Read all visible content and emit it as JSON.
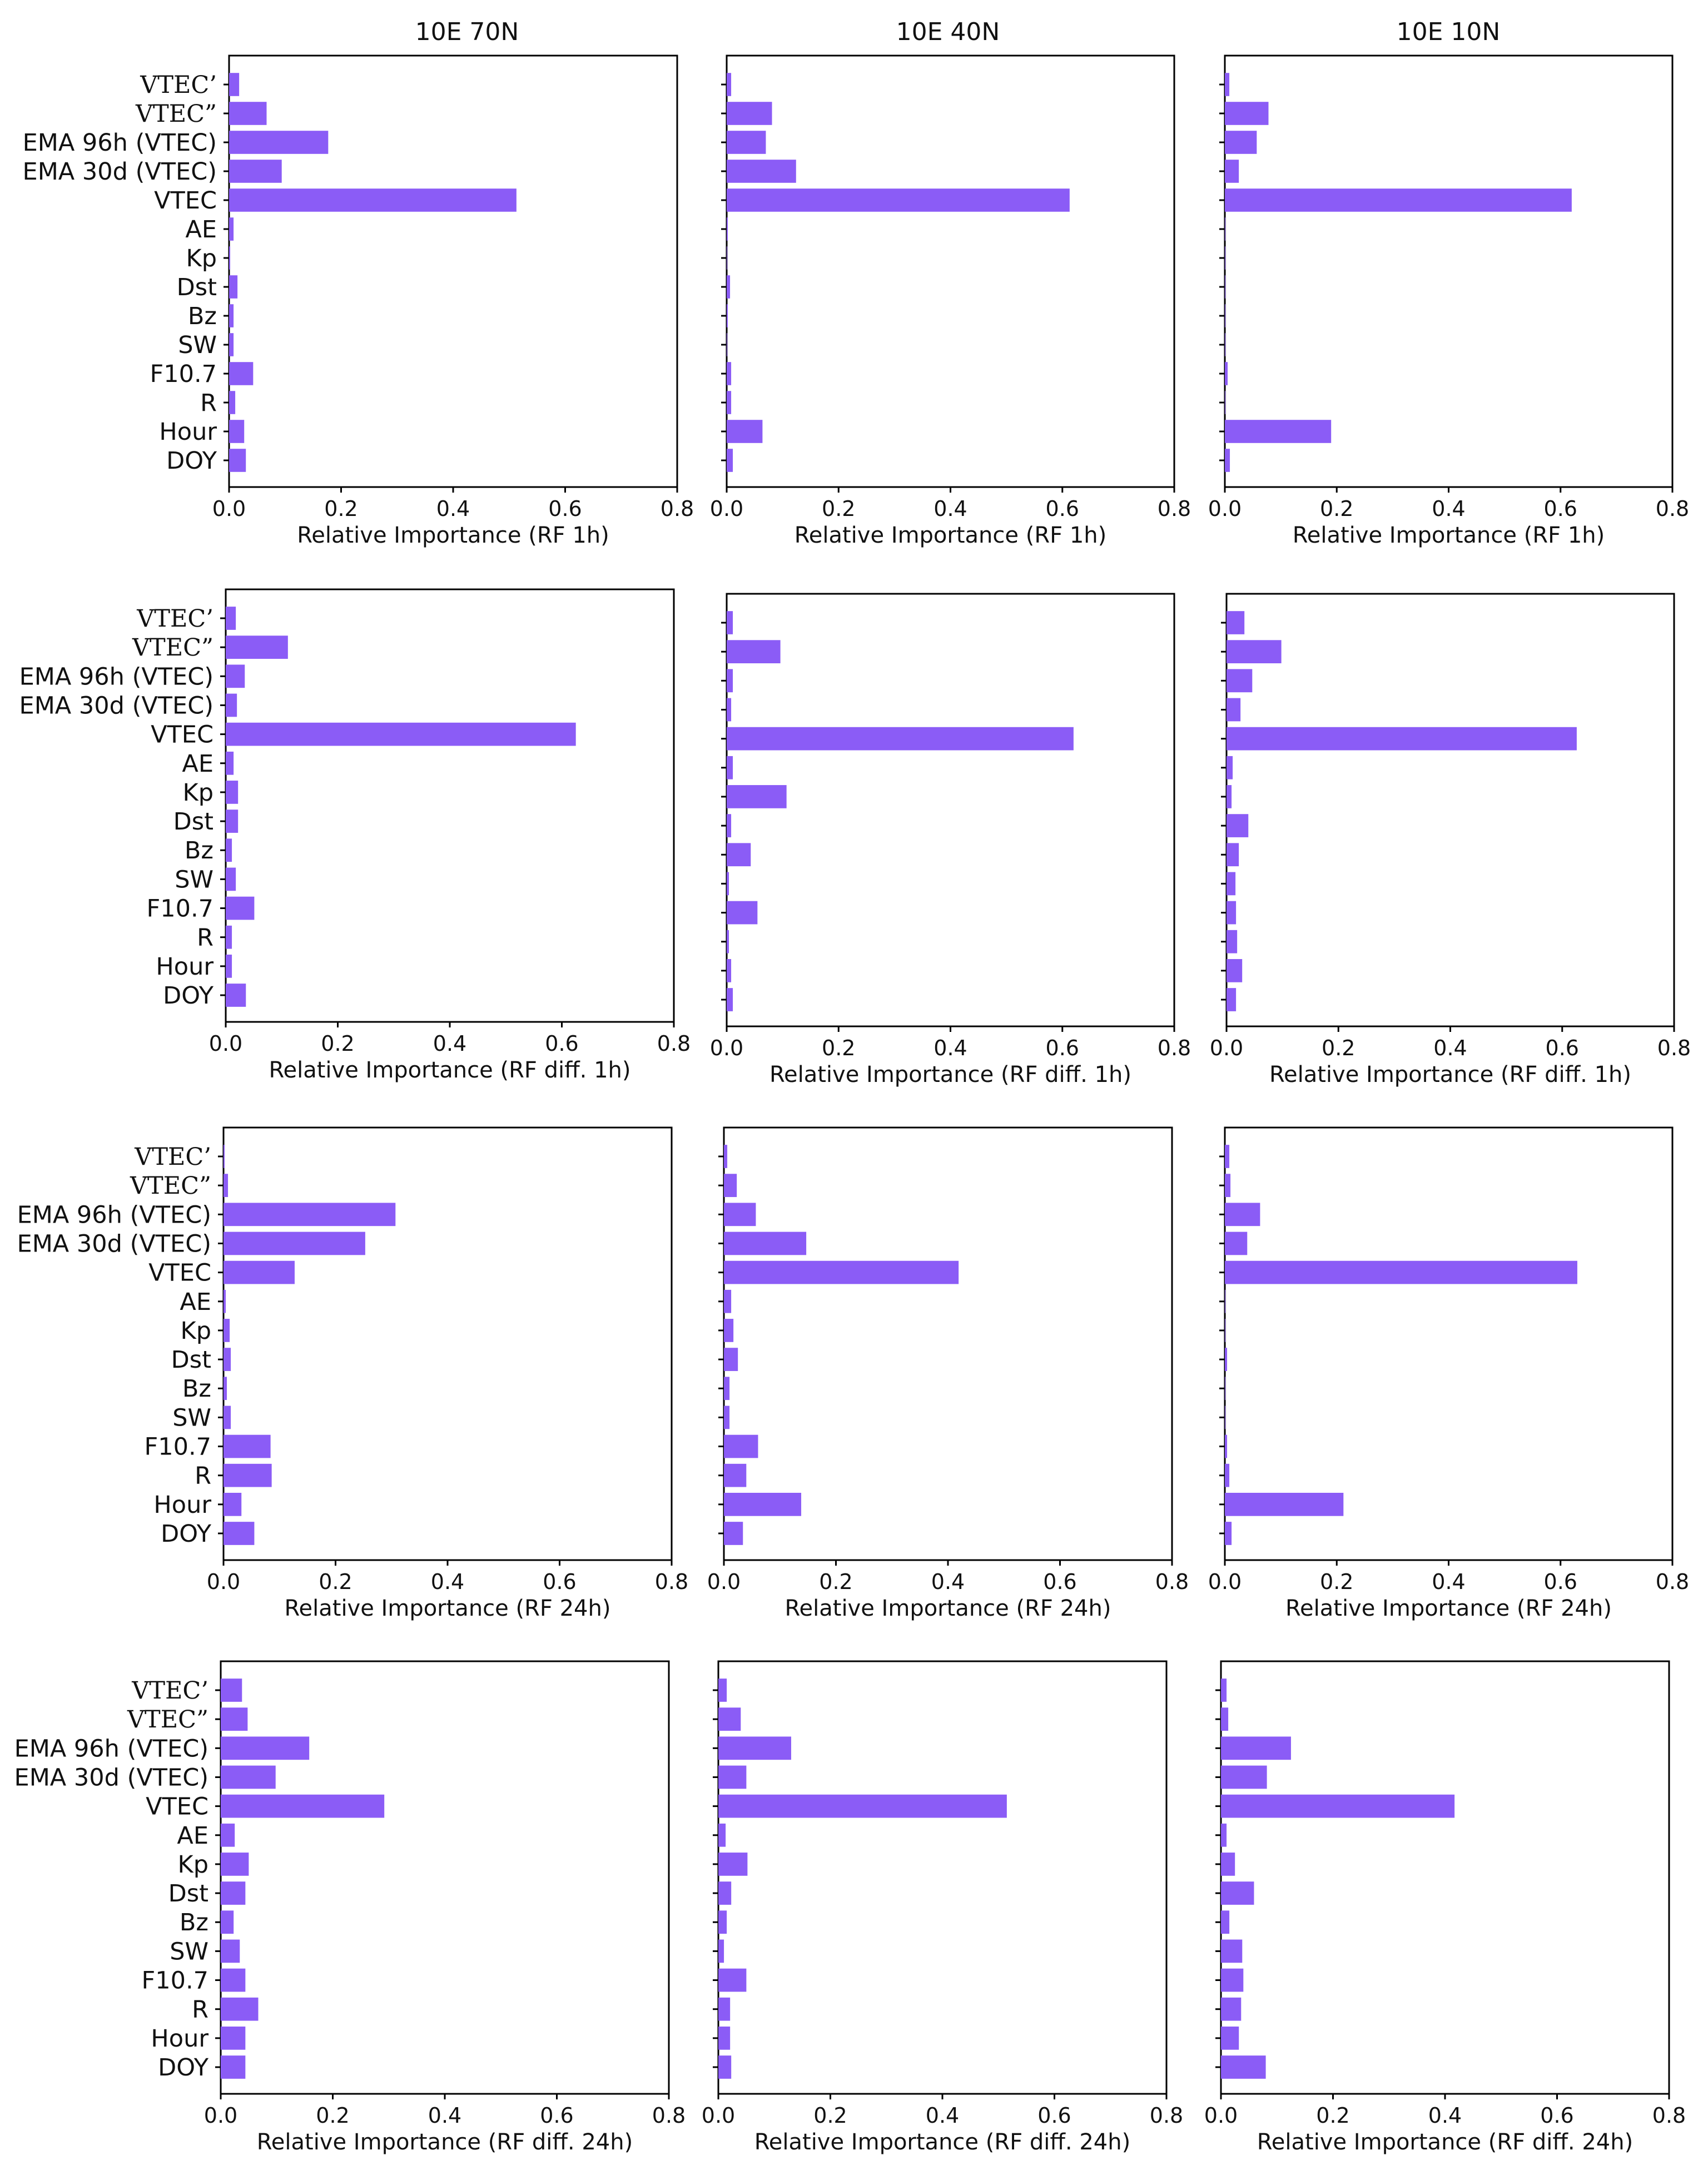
{
  "column_titles": [
    "10E 70N",
    "10E 40N",
    "10E 10N"
  ],
  "colors": {
    "bar": "#8b5cf6",
    "axis": "#000000",
    "text": "#111111"
  },
  "chart_data": [
    {
      "type": "bar",
      "orientation": "horizontal",
      "column_title": "10E 70N",
      "xlabel": "Relative Importance (RF 1h)",
      "xlim": [
        0,
        0.8
      ],
      "xticks": [
        "0.0",
        "0.2",
        "0.4",
        "0.6",
        "0.8"
      ],
      "categories": [
        "VTEC’",
        "VTEC”",
        "EMA 96h (VTEC)",
        "EMA 30d (VTEC)",
        "VTEC",
        "AE",
        "Kp",
        "Dst",
        "Bz",
        "SW",
        "F10.7",
        "R",
        "Hour",
        "DOY"
      ],
      "values": [
        0.018,
        0.067,
        0.177,
        0.094,
        0.513,
        0.008,
        0.002,
        0.015,
        0.008,
        0.008,
        0.043,
        0.011,
        0.027,
        0.03
      ]
    },
    {
      "type": "bar",
      "orientation": "horizontal",
      "column_title": "10E 40N",
      "xlabel": "Relative Importance (RF 1h)",
      "xlim": [
        0,
        0.8
      ],
      "xticks": [
        "0.0",
        "0.2",
        "0.4",
        "0.6",
        "0.8"
      ],
      "categories": [
        "VTEC’",
        "VTEC”",
        "EMA 96h (VTEC)",
        "EMA 30d (VTEC)",
        "VTEC",
        "AE",
        "Kp",
        "Dst",
        "Bz",
        "SW",
        "F10.7",
        "R",
        "Hour",
        "DOY"
      ],
      "values": [
        0.008,
        0.081,
        0.07,
        0.124,
        0.613,
        0.002,
        0.001,
        0.006,
        0.002,
        0.001,
        0.008,
        0.008,
        0.064,
        0.011
      ]
    },
    {
      "type": "bar",
      "orientation": "horizontal",
      "column_title": "10E 10N",
      "xlabel": "Relative Importance (RF 1h)",
      "xlim": [
        0,
        0.8
      ],
      "xticks": [
        "0.0",
        "0.2",
        "0.4",
        "0.6",
        "0.8"
      ],
      "categories": [
        "VTEC’",
        "VTEC”",
        "EMA 96h (VTEC)",
        "EMA 30d (VTEC)",
        "VTEC",
        "AE",
        "Kp",
        "Dst",
        "Bz",
        "SW",
        "F10.7",
        "R",
        "Hour",
        "DOY"
      ],
      "values": [
        0.008,
        0.078,
        0.057,
        0.025,
        0.62,
        0.001,
        0.001,
        0.001,
        0.001,
        0.001,
        0.005,
        0.001,
        0.19,
        0.009
      ]
    },
    {
      "type": "bar",
      "orientation": "horizontal",
      "column_title": "10E 70N",
      "xlabel": "Relative Importance (RF diff. 1h)",
      "xlim": [
        0,
        0.8
      ],
      "xticks": [
        "0.0",
        "0.2",
        "0.4",
        "0.6",
        "0.8"
      ],
      "categories": [
        "VTEC’",
        "VTEC”",
        "EMA 96h (VTEC)",
        "EMA 30d (VTEC)",
        "VTEC",
        "AE",
        "Kp",
        "Dst",
        "Bz",
        "SW",
        "F10.7",
        "R",
        "Hour",
        "DOY"
      ],
      "values": [
        0.018,
        0.111,
        0.034,
        0.02,
        0.625,
        0.014,
        0.022,
        0.022,
        0.011,
        0.018,
        0.051,
        0.011,
        0.011,
        0.036
      ]
    },
    {
      "type": "bar",
      "orientation": "horizontal",
      "column_title": "10E 40N",
      "xlabel": "Relative Importance (RF diff. 1h)",
      "xlim": [
        0,
        0.8
      ],
      "xticks": [
        "0.0",
        "0.2",
        "0.4",
        "0.6",
        "0.8"
      ],
      "categories": [
        "VTEC’",
        "VTEC”",
        "EMA 96h (VTEC)",
        "EMA 30d (VTEC)",
        "VTEC",
        "AE",
        "Kp",
        "Dst",
        "Bz",
        "SW",
        "F10.7",
        "R",
        "Hour",
        "DOY"
      ],
      "values": [
        0.011,
        0.096,
        0.011,
        0.008,
        0.62,
        0.011,
        0.107,
        0.008,
        0.043,
        0.004,
        0.055,
        0.004,
        0.008,
        0.011
      ]
    },
    {
      "type": "bar",
      "orientation": "horizontal",
      "column_title": "10E 10N",
      "xlabel": "Relative Importance (RF diff. 1h)",
      "xlim": [
        0,
        0.8
      ],
      "xticks": [
        "0.0",
        "0.2",
        "0.4",
        "0.6",
        "0.8"
      ],
      "categories": [
        "VTEC’",
        "VTEC”",
        "EMA 96h (VTEC)",
        "EMA 30d (VTEC)",
        "VTEC",
        "AE",
        "Kp",
        "Dst",
        "Bz",
        "SW",
        "F10.7",
        "R",
        "Hour",
        "DOY"
      ],
      "values": [
        0.032,
        0.098,
        0.046,
        0.025,
        0.626,
        0.011,
        0.009,
        0.039,
        0.022,
        0.016,
        0.017,
        0.019,
        0.028,
        0.017
      ]
    },
    {
      "type": "bar",
      "orientation": "horizontal",
      "column_title": "10E 70N",
      "xlabel": "Relative Importance (RF 24h)",
      "xlim": [
        0,
        0.8
      ],
      "xticks": [
        "0.0",
        "0.2",
        "0.4",
        "0.6",
        "0.8"
      ],
      "categories": [
        "VTEC’",
        "VTEC”",
        "EMA 96h (VTEC)",
        "EMA 30d (VTEC)",
        "VTEC",
        "AE",
        "Kp",
        "Dst",
        "Bz",
        "SW",
        "F10.7",
        "R",
        "Hour",
        "DOY"
      ],
      "values": [
        0.002,
        0.008,
        0.307,
        0.253,
        0.127,
        0.004,
        0.011,
        0.013,
        0.006,
        0.013,
        0.084,
        0.086,
        0.032,
        0.055
      ]
    },
    {
      "type": "bar",
      "orientation": "horizontal",
      "column_title": "10E 40N",
      "xlabel": "Relative Importance (RF 24h)",
      "xlim": [
        0,
        0.8
      ],
      "xticks": [
        "0.0",
        "0.2",
        "0.4",
        "0.6",
        "0.8"
      ],
      "categories": [
        "VTEC’",
        "VTEC”",
        "EMA 96h (VTEC)",
        "EMA 30d (VTEC)",
        "VTEC",
        "AE",
        "Kp",
        "Dst",
        "Bz",
        "SW",
        "F10.7",
        "R",
        "Hour",
        "DOY"
      ],
      "values": [
        0.006,
        0.023,
        0.057,
        0.147,
        0.419,
        0.013,
        0.017,
        0.025,
        0.01,
        0.01,
        0.061,
        0.04,
        0.138,
        0.034
      ]
    },
    {
      "type": "bar",
      "orientation": "horizontal",
      "column_title": "10E 10N",
      "xlabel": "Relative Importance (RF 24h)",
      "xlim": [
        0,
        0.8
      ],
      "xticks": [
        "0.0",
        "0.2",
        "0.4",
        "0.6",
        "0.8"
      ],
      "categories": [
        "VTEC’",
        "VTEC”",
        "EMA 96h (VTEC)",
        "EMA 30d (VTEC)",
        "VTEC",
        "AE",
        "Kp",
        "Dst",
        "Bz",
        "SW",
        "F10.7",
        "R",
        "Hour",
        "DOY"
      ],
      "values": [
        0.008,
        0.01,
        0.063,
        0.04,
        0.63,
        0.001,
        0.001,
        0.004,
        0.001,
        0.001,
        0.004,
        0.008,
        0.212,
        0.012
      ]
    },
    {
      "type": "bar",
      "orientation": "horizontal",
      "column_title": "10E 70N",
      "xlabel": "Relative Importance (RF diff. 24h)",
      "xlim": [
        0,
        0.8
      ],
      "xticks": [
        "0.0",
        "0.2",
        "0.4",
        "0.6",
        "0.8"
      ],
      "categories": [
        "VTEC’",
        "VTEC”",
        "EMA 96h (VTEC)",
        "EMA 30d (VTEC)",
        "VTEC",
        "AE",
        "Kp",
        "Dst",
        "Bz",
        "SW",
        "F10.7",
        "R",
        "Hour",
        "DOY"
      ],
      "values": [
        0.038,
        0.048,
        0.158,
        0.098,
        0.292,
        0.025,
        0.05,
        0.044,
        0.023,
        0.034,
        0.044,
        0.067,
        0.044,
        0.044
      ]
    },
    {
      "type": "bar",
      "orientation": "horizontal",
      "column_title": "10E 40N",
      "xlabel": "Relative Importance (RF diff. 24h)",
      "xlim": [
        0,
        0.8
      ],
      "xticks": [
        "0.0",
        "0.2",
        "0.4",
        "0.6",
        "0.8"
      ],
      "categories": [
        "VTEC’",
        "VTEC”",
        "EMA 96h (VTEC)",
        "EMA 30d (VTEC)",
        "VTEC",
        "AE",
        "Kp",
        "Dst",
        "Bz",
        "SW",
        "F10.7",
        "R",
        "Hour",
        "DOY"
      ],
      "values": [
        0.015,
        0.04,
        0.13,
        0.05,
        0.515,
        0.013,
        0.052,
        0.023,
        0.015,
        0.01,
        0.05,
        0.021,
        0.021,
        0.023
      ]
    },
    {
      "type": "bar",
      "orientation": "horizontal",
      "column_title": "10E 10N",
      "xlabel": "Relative Importance (RF diff. 24h)",
      "xlim": [
        0,
        0.8
      ],
      "xticks": [
        "0.0",
        "0.2",
        "0.4",
        "0.6",
        "0.8"
      ],
      "categories": [
        "VTEC’",
        "VTEC”",
        "EMA 96h (VTEC)",
        "EMA 30d (VTEC)",
        "VTEC",
        "AE",
        "Kp",
        "Dst",
        "Bz",
        "SW",
        "F10.7",
        "R",
        "Hour",
        "DOY"
      ],
      "values": [
        0.01,
        0.013,
        0.125,
        0.082,
        0.417,
        0.01,
        0.025,
        0.059,
        0.015,
        0.038,
        0.04,
        0.036,
        0.032,
        0.08
      ]
    }
  ]
}
